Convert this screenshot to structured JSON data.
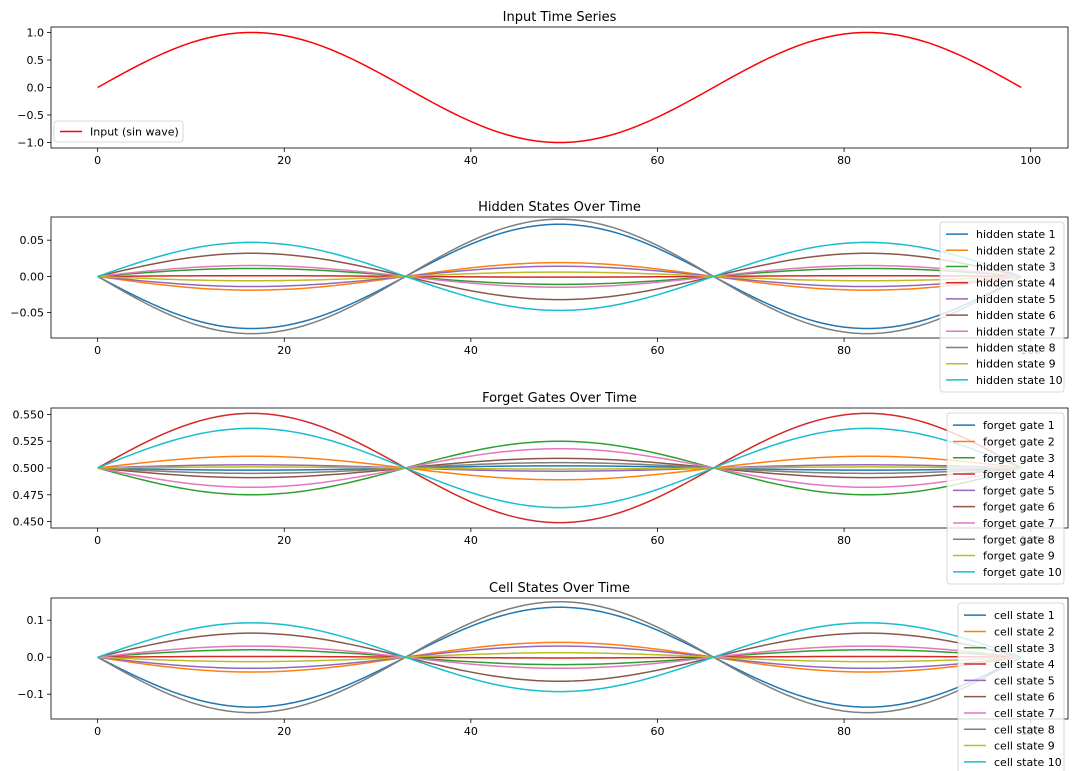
{
  "chart_data": [
    {
      "type": "line",
      "title": "Input Time Series",
      "xlabel": "",
      "ylabel": "",
      "xlim": [
        -5,
        104
      ],
      "ylim": [
        -1.1,
        1.1
      ],
      "xticks": [
        0,
        20,
        40,
        60,
        80,
        100
      ],
      "yticks": [
        -1.0,
        -0.5,
        0.0,
        0.5,
        1.0
      ],
      "ytick_labels": [
        "−1.0",
        "−0.5",
        "0.0",
        "0.5",
        "1.0"
      ],
      "legend_position": "lower-left",
      "grid": false,
      "x": {
        "start": 0,
        "end": 99,
        "count": 100
      },
      "series": [
        {
          "name": "Input (sin wave)",
          "color": "#ff0000",
          "formula": "A*sin(2*pi*x/66)",
          "amplitude": 1.0
        }
      ]
    },
    {
      "type": "line",
      "title": "Hidden States Over Time",
      "xlabel": "",
      "ylabel": "",
      "xlim": [
        -5,
        104
      ],
      "ylim": [
        -0.085,
        0.082
      ],
      "xticks": [
        0,
        20,
        40,
        60,
        80,
        100
      ],
      "yticks": [
        -0.05,
        0.0,
        0.05
      ],
      "ytick_labels": [
        "−0.05",
        "0.00",
        "0.05"
      ],
      "legend_position": "right",
      "grid": false,
      "x": {
        "start": 0,
        "end": 99,
        "count": 100
      },
      "series": [
        {
          "name": "hidden state 1",
          "color": "#1f77b4",
          "formula": "A*sin(2*pi*x/66)",
          "amplitude": -0.072
        },
        {
          "name": "hidden state 2",
          "color": "#ff7f0e",
          "formula": "A*sin(2*pi*x/66)",
          "amplitude": -0.019
        },
        {
          "name": "hidden state 3",
          "color": "#2ca02c",
          "formula": "A*sin(2*pi*x/66)",
          "amplitude": 0.011
        },
        {
          "name": "hidden state 4",
          "color": "#d62728",
          "formula": "A*sin(2*pi*x/66)",
          "amplitude": 0.001
        },
        {
          "name": "hidden state 5",
          "color": "#9467bd",
          "formula": "A*sin(2*pi*x/66)",
          "amplitude": -0.014
        },
        {
          "name": "hidden state 6",
          "color": "#8c564b",
          "formula": "A*sin(2*pi*x/66)",
          "amplitude": 0.032
        },
        {
          "name": "hidden state 7",
          "color": "#e377c2",
          "formula": "A*sin(2*pi*x/66)",
          "amplitude": 0.015
        },
        {
          "name": "hidden state 8",
          "color": "#7f7f7f",
          "formula": "A*sin(2*pi*x/66)",
          "amplitude": -0.079
        },
        {
          "name": "hidden state 9",
          "color": "#bcbd22",
          "formula": "A*sin(2*pi*x/66)",
          "amplitude": -0.006
        },
        {
          "name": "hidden state 10",
          "color": "#17becf",
          "formula": "A*sin(2*pi*x/66)",
          "amplitude": 0.047
        }
      ]
    },
    {
      "type": "line",
      "title": "Forget Gates Over Time",
      "xlabel": "",
      "ylabel": "",
      "xlim": [
        -5,
        104
      ],
      "ylim": [
        0.444,
        0.556
      ],
      "xticks": [
        0,
        20,
        40,
        60,
        80,
        100
      ],
      "yticks": [
        0.45,
        0.475,
        0.5,
        0.525,
        0.55
      ],
      "ytick_labels": [
        "0.450",
        "0.475",
        "0.500",
        "0.525",
        "0.550"
      ],
      "legend_position": "right",
      "grid": false,
      "x": {
        "start": 0,
        "end": 99,
        "count": 100
      },
      "series": [
        {
          "name": "forget gate 1",
          "color": "#1f77b4",
          "formula": "0.5+A*sin(2*pi*x/66)",
          "amplitude": -0.002
        },
        {
          "name": "forget gate 2",
          "color": "#ff7f0e",
          "formula": "0.5+A*sin(2*pi*x/66)",
          "amplitude": 0.011
        },
        {
          "name": "forget gate 3",
          "color": "#2ca02c",
          "formula": "0.5+A*sin(2*pi*x/66)",
          "amplitude": -0.025
        },
        {
          "name": "forget gate 4",
          "color": "#d62728",
          "formula": "0.5+A*sin(2*pi*x/66)",
          "amplitude": 0.051
        },
        {
          "name": "forget gate 5",
          "color": "#9467bd",
          "formula": "0.5+A*sin(2*pi*x/66)",
          "amplitude": 0.003
        },
        {
          "name": "forget gate 6",
          "color": "#8c564b",
          "formula": "0.5+A*sin(2*pi*x/66)",
          "amplitude": -0.009
        },
        {
          "name": "forget gate 7",
          "color": "#e377c2",
          "formula": "0.5+A*sin(2*pi*x/66)",
          "amplitude": -0.018
        },
        {
          "name": "forget gate 8",
          "color": "#7f7f7f",
          "formula": "0.5+A*sin(2*pi*x/66)",
          "amplitude": -0.005
        },
        {
          "name": "forget gate 9",
          "color": "#bcbd22",
          "formula": "0.5+A*sin(2*pi*x/66)",
          "amplitude": 0.001
        },
        {
          "name": "forget gate 10",
          "color": "#17becf",
          "formula": "0.5+A*sin(2*pi*x/66)",
          "amplitude": 0.037
        }
      ]
    },
    {
      "type": "line",
      "title": "Cell States Over Time",
      "xlabel": "",
      "ylabel": "",
      "xlim": [
        -5,
        104
      ],
      "ylim": [
        -0.167,
        0.16
      ],
      "xticks": [
        0,
        20,
        40,
        60,
        80,
        100
      ],
      "yticks": [
        -0.1,
        0.0,
        0.1
      ],
      "ytick_labels": [
        "−0.1",
        "0.0",
        "0.1"
      ],
      "legend_position": "right",
      "grid": false,
      "x": {
        "start": 0,
        "end": 99,
        "count": 100
      },
      "series": [
        {
          "name": "cell state 1",
          "color": "#1f77b4",
          "formula": "A*sin(2*pi*x/66)",
          "amplitude": -0.135
        },
        {
          "name": "cell state 2",
          "color": "#ff7f0e",
          "formula": "A*sin(2*pi*x/66)",
          "amplitude": -0.04
        },
        {
          "name": "cell state 3",
          "color": "#2ca02c",
          "formula": "A*sin(2*pi*x/66)",
          "amplitude": 0.02
        },
        {
          "name": "cell state 4",
          "color": "#d62728",
          "formula": "A*sin(2*pi*x/66)",
          "amplitude": 0.002
        },
        {
          "name": "cell state 5",
          "color": "#9467bd",
          "formula": "A*sin(2*pi*x/66)",
          "amplitude": -0.03
        },
        {
          "name": "cell state 6",
          "color": "#8c564b",
          "formula": "A*sin(2*pi*x/66)",
          "amplitude": 0.065
        },
        {
          "name": "cell state 7",
          "color": "#e377c2",
          "formula": "A*sin(2*pi*x/66)",
          "amplitude": 0.03
        },
        {
          "name": "cell state 8",
          "color": "#7f7f7f",
          "formula": "A*sin(2*pi*x/66)",
          "amplitude": -0.15
        },
        {
          "name": "cell state 9",
          "color": "#bcbd22",
          "formula": "A*sin(2*pi*x/66)",
          "amplitude": -0.012
        },
        {
          "name": "cell state 10",
          "color": "#17becf",
          "formula": "A*sin(2*pi*x/66)",
          "amplitude": 0.093
        }
      ]
    }
  ]
}
